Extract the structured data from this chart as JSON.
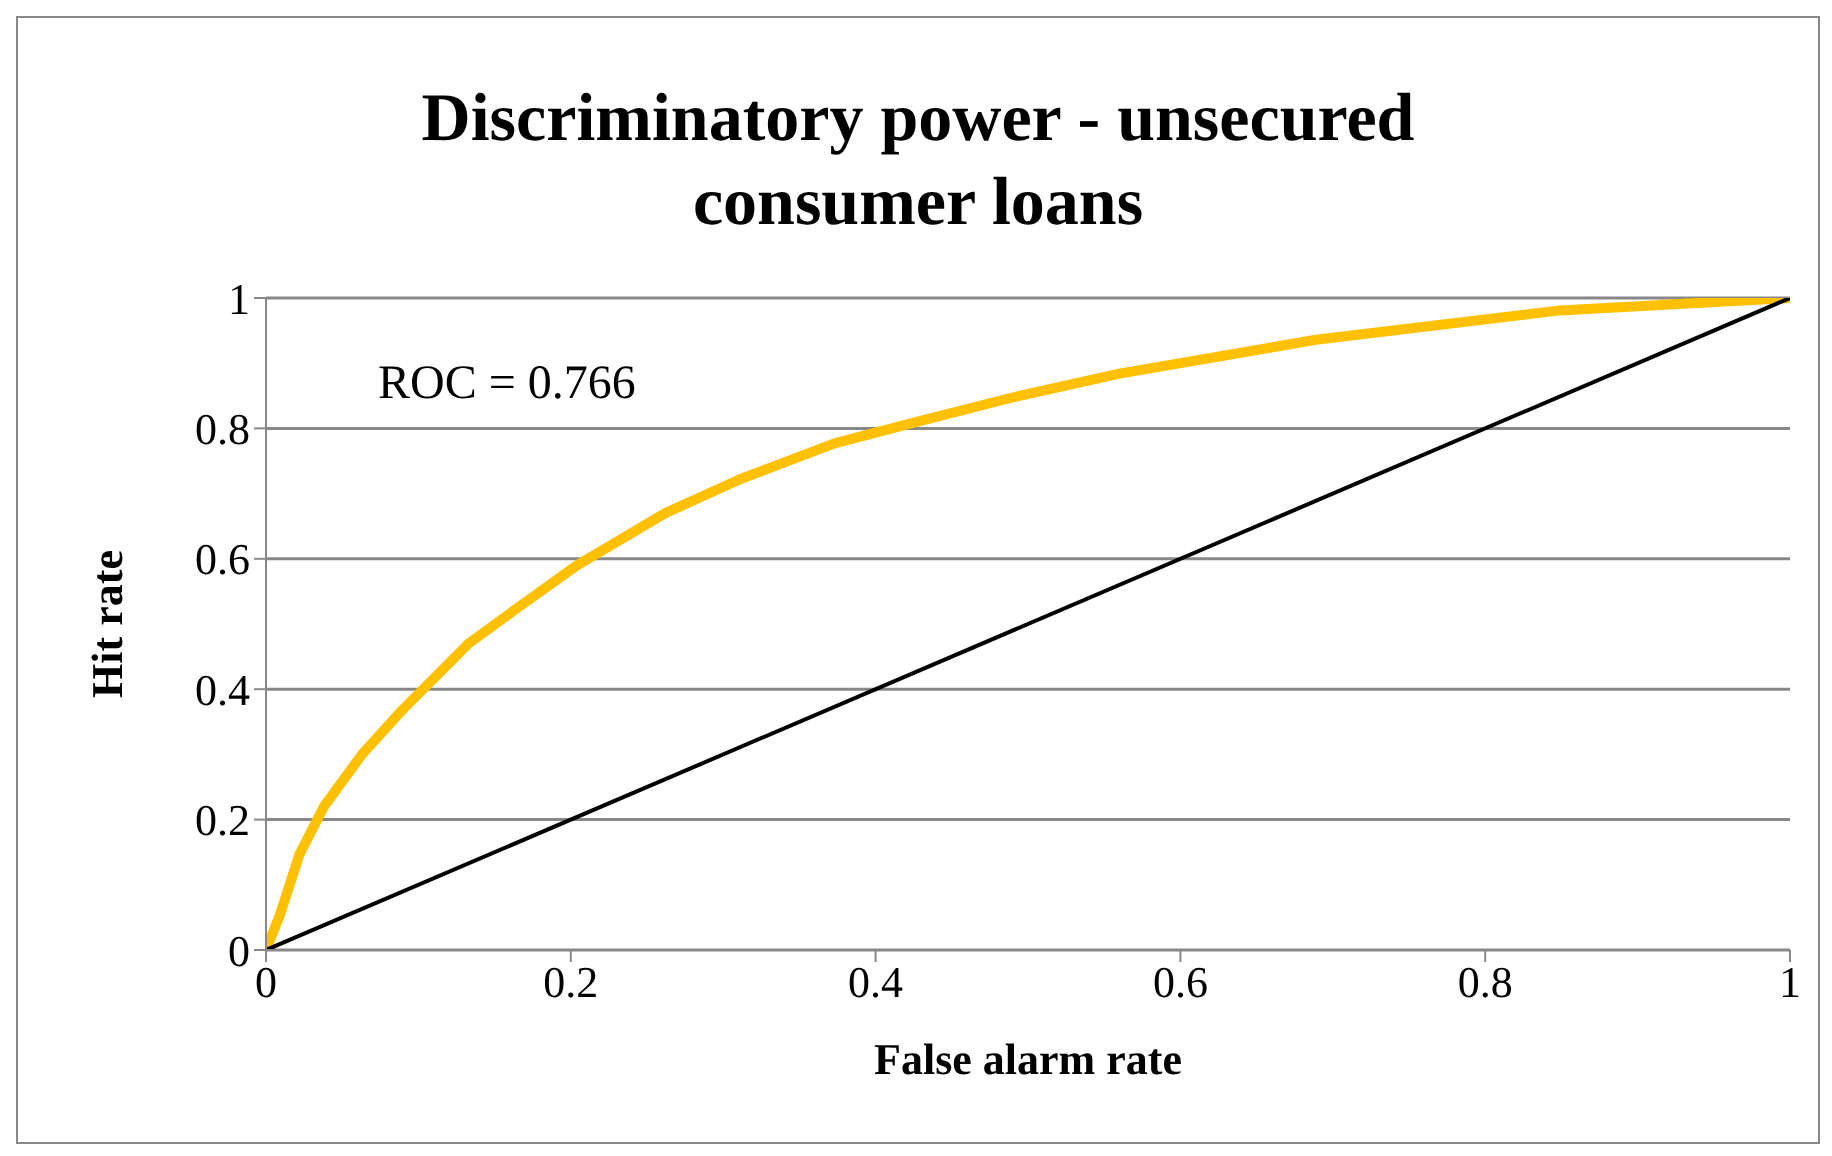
{
  "chart_data": {
    "type": "line",
    "title": "Discriminatory power - unsecured consumer loans",
    "xlabel": "False alarm rate",
    "ylabel": "Hit rate",
    "annotations": [
      "ROC = 0.766"
    ],
    "series": [
      {
        "color": "#ffc000",
        "x": [
          0,
          0.009,
          0.022,
          0.038,
          0.063,
          0.089,
          0.133,
          0.164,
          0.204,
          0.262,
          0.311,
          0.373,
          0.427,
          0.489,
          0.56,
          0.689,
          0.849,
          1
        ],
        "values": [
          0,
          0.053,
          0.147,
          0.22,
          0.3,
          0.367,
          0.47,
          0.523,
          0.59,
          0.67,
          0.722,
          0.777,
          0.81,
          0.847,
          0.884,
          0.936,
          0.981,
          1
        ]
      },
      {
        "color": "#000000",
        "x": [
          0,
          1
        ],
        "values": [
          0,
          1
        ]
      }
    ],
    "xlim": [
      0,
      1
    ],
    "xticks": [
      0,
      0.2,
      0.4,
      0.6,
      0.8,
      1
    ],
    "ylim": [
      0,
      1
    ],
    "yticks": [
      0,
      0.2,
      0.4,
      0.6,
      0.8,
      1
    ],
    "grid": "y",
    "marker": "none",
    "line_style": "solid"
  }
}
